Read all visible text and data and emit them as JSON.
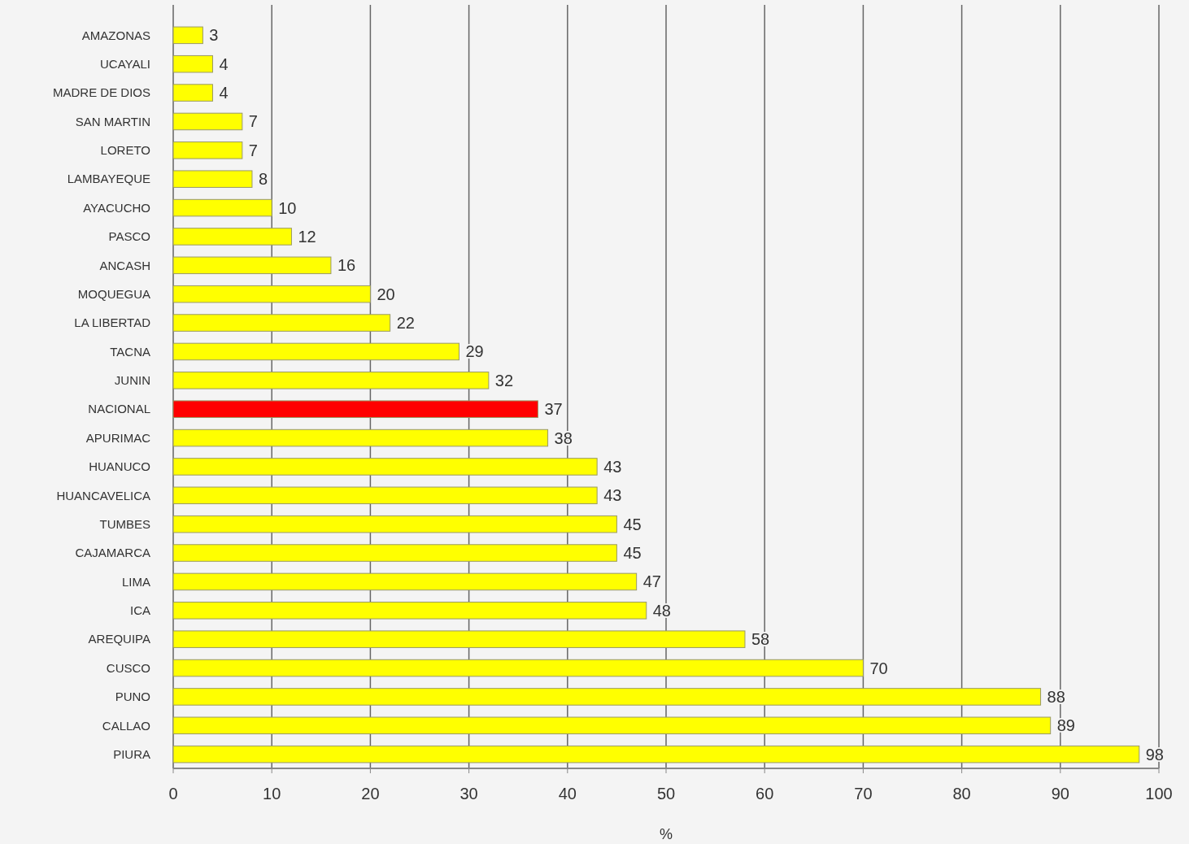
{
  "chart_data": {
    "type": "bar",
    "orientation": "horizontal",
    "xlabel": "%",
    "categories": [
      "AMAZONAS",
      "UCAYALI",
      "MADRE DE DIOS",
      "SAN MARTIN",
      "LORETO",
      "LAMBAYEQUE",
      "AYACUCHO",
      "PASCO",
      "ANCASH",
      "MOQUEGUA",
      "LA LIBERTAD",
      "TACNA",
      "JUNIN",
      "NACIONAL",
      "APURIMAC",
      "HUANUCO",
      "HUANCAVELICA",
      "TUMBES",
      "CAJAMARCA",
      "LIMA",
      "ICA",
      "AREQUIPA",
      "CUSCO",
      "PUNO",
      "CALLAO",
      "PIURA"
    ],
    "values": [
      3,
      4,
      4,
      7,
      7,
      8,
      10,
      12,
      16,
      20,
      22,
      29,
      32,
      37,
      38,
      43,
      43,
      45,
      45,
      47,
      48,
      58,
      70,
      88,
      89,
      98
    ],
    "colors": [
      "#ffff00",
      "#ffff00",
      "#ffff00",
      "#ffff00",
      "#ffff00",
      "#ffff00",
      "#ffff00",
      "#ffff00",
      "#ffff00",
      "#ffff00",
      "#ffff00",
      "#ffff00",
      "#ffff00",
      "#ff0000",
      "#ffff00",
      "#ffff00",
      "#ffff00",
      "#ffff00",
      "#ffff00",
      "#ffff00",
      "#ffff00",
      "#ffff00",
      "#ffff00",
      "#ffff00",
      "#ffff00",
      "#ffff00"
    ],
    "xlim": [
      0,
      100
    ],
    "xticks": [
      0,
      10,
      20,
      30,
      40,
      50,
      60,
      70,
      80,
      90,
      100
    ],
    "grid": "x",
    "data_labels": true
  }
}
